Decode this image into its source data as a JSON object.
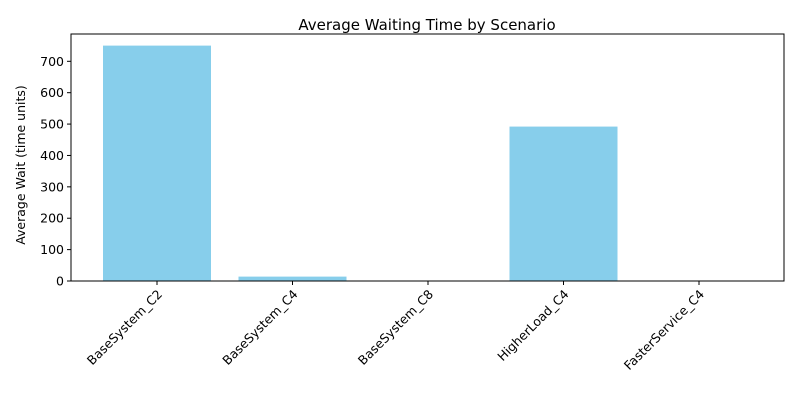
{
  "chart_data": {
    "type": "bar",
    "title": "Average Waiting Time by Scenario",
    "xlabel": "",
    "ylabel": "Average Wait (time units)",
    "categories": [
      "BaseSystem_C2",
      "BaseSystem_C4",
      "BaseSystem_C8",
      "HigherLoad_C4",
      "FasterService_C4"
    ],
    "values": [
      750,
      14,
      0.1,
      492,
      0.4
    ],
    "ylim": [
      0,
      787
    ],
    "yticks": [
      0,
      100,
      200,
      300,
      400,
      500,
      600,
      700
    ],
    "grid": false,
    "bar_color": "#87ceeb",
    "legend": "none"
  }
}
